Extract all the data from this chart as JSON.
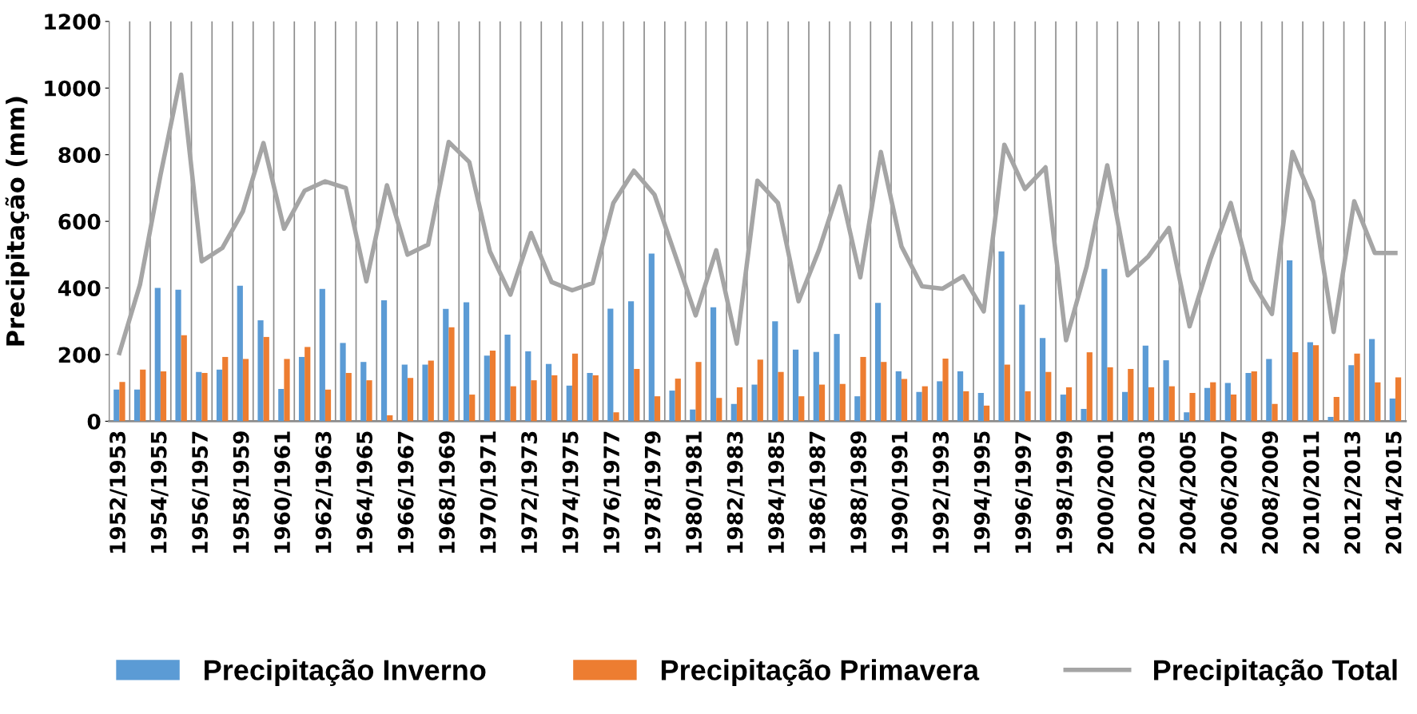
{
  "chart_data": {
    "type": "bar",
    "ylabel": "Precipitação (mm)",
    "categories": [
      "1952/1953",
      null,
      "1954/1955",
      null,
      "1956/1957",
      null,
      "1958/1959",
      null,
      "1960/1961",
      null,
      "1962/1963",
      null,
      "1964/1965",
      null,
      "1966/1967",
      null,
      "1968/1969",
      null,
      "1970/1971",
      null,
      "1972/1973",
      null,
      "1974/1975",
      null,
      "1976/1977",
      null,
      "1978/1979",
      null,
      "1980/1981",
      null,
      "1982/1983",
      null,
      "1984/1985",
      null,
      "1986/1987",
      null,
      "1988/1989",
      null,
      "1990/1991",
      null,
      "1992/1993",
      null,
      "1994/1995",
      null,
      "1996/1997",
      null,
      "1998/1999",
      null,
      "2000/2001",
      null,
      "2002/2003",
      null,
      "2004/2005",
      null,
      "2006/2007",
      null,
      "2008/2009",
      null,
      "2010/2011",
      null,
      "2012/2013",
      null,
      "2014/2015"
    ],
    "series": [
      {
        "name": "Precipitação Inverno",
        "color": "#5b9bd5",
        "values": [
          95,
          95,
          400,
          395,
          148,
          155,
          407,
          303,
          97,
          193,
          397,
          235,
          178,
          363,
          170,
          170,
          337,
          357,
          197,
          260,
          210,
          172,
          107,
          145,
          338,
          360,
          503,
          92,
          35,
          342,
          52,
          110,
          300,
          215,
          208,
          262,
          75,
          355,
          150,
          88,
          120,
          150,
          85,
          510,
          350,
          250,
          80,
          37,
          457,
          88,
          227,
          183,
          27,
          100,
          115,
          145,
          187,
          483,
          237,
          13,
          168,
          247,
          68
        ]
      },
      {
        "name": "Precipitação Primavera",
        "color": "#ed7d31",
        "values": [
          118,
          155,
          150,
          258,
          145,
          193,
          187,
          253,
          187,
          223,
          95,
          145,
          123,
          18,
          130,
          182,
          282,
          80,
          212,
          105,
          123,
          138,
          203,
          138,
          27,
          157,
          75,
          128,
          178,
          70,
          102,
          185,
          148,
          75,
          110,
          112,
          193,
          178,
          127,
          105,
          188,
          90,
          47,
          170,
          90,
          148,
          102,
          207,
          162,
          157,
          102,
          105,
          85,
          117,
          80,
          150,
          52,
          207,
          228,
          73,
          203,
          117,
          132
        ]
      },
      {
        "name": "Precipitação Total",
        "type": "line",
        "color": "#a5a5a5",
        "values": [
          205,
          410,
          740,
          1040,
          480,
          520,
          630,
          835,
          578,
          692,
          720,
          700,
          420,
          708,
          500,
          530,
          838,
          778,
          510,
          380,
          565,
          418,
          393,
          415,
          655,
          752,
          680,
          500,
          318,
          513,
          233,
          722,
          655,
          360,
          515,
          705,
          432,
          808,
          525,
          405,
          398,
          435,
          330,
          830,
          697,
          762,
          243,
          465,
          768,
          438,
          495,
          580,
          285,
          485,
          655,
          423,
          322,
          808,
          660,
          268,
          660,
          505,
          505
        ]
      }
    ],
    "ylim": [
      0,
      1200
    ],
    "yticks": [
      0,
      200,
      400,
      600,
      800,
      1000,
      1200
    ],
    "grid": "x",
    "legend": "bottom",
    "marker": "none",
    "line_style": "solid"
  }
}
